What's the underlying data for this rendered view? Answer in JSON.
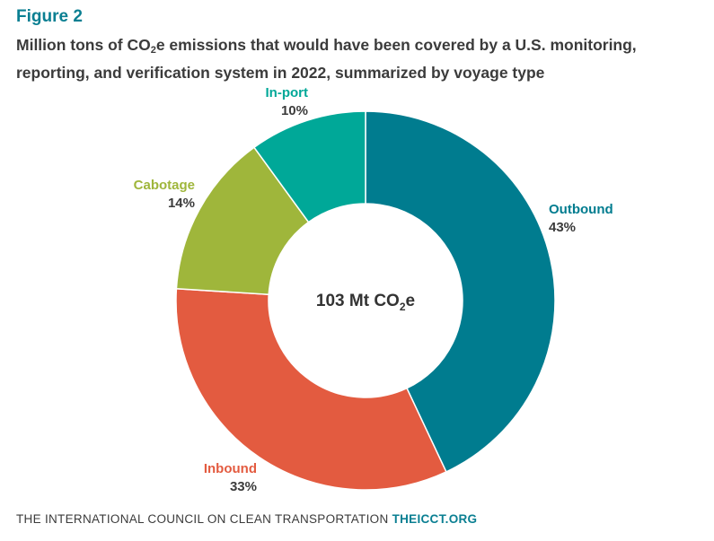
{
  "figure_label": "Figure 2",
  "title": {
    "part1": "Million tons of CO",
    "sub": "2",
    "part2": "e emissions that would have been covered by a U.S. monitoring, reporting, and verification system in 2022, summarized by voyage type"
  },
  "chart_data": {
    "type": "pie",
    "variant": "donut",
    "title": "Million tons of CO2e emissions that would have been covered by a U.S. monitoring, reporting, and verification system in 2022, summarized by voyage type",
    "center_label": {
      "main": "103 Mt CO",
      "sub": "2",
      "suffix": "e"
    },
    "slices": [
      {
        "name": "Outbound",
        "value": 43,
        "pct_label": "43%",
        "color": "#007c8f"
      },
      {
        "name": "Inbound",
        "value": 33,
        "pct_label": "33%",
        "color": "#e35b40"
      },
      {
        "name": "Cabotage",
        "value": 14,
        "pct_label": "14%",
        "color": "#9fb63b"
      },
      {
        "name": "In-port",
        "value": 10,
        "pct_label": "10%",
        "color": "#00a898"
      }
    ]
  },
  "footer": {
    "org": "THE INTERNATIONAL COUNCIL ON CLEAN TRANSPORTATION",
    "site": "THEICCT.ORG"
  }
}
